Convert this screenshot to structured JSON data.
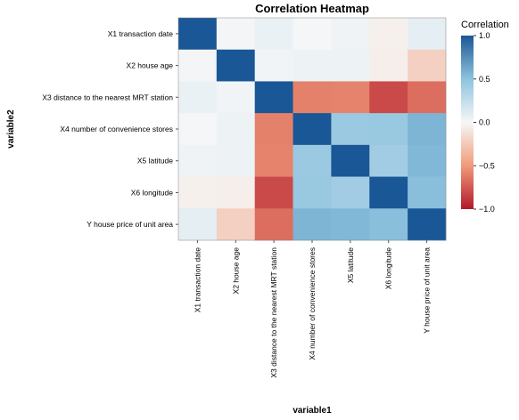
{
  "chart_data": {
    "type": "heatmap",
    "title": "Correlation Heatmap",
    "xlabel": "variable1",
    "ylabel": "variable2",
    "x_categories": [
      "X1 transaction date",
      "X2 house age",
      "X3 distance to the nearest MRT station",
      "X4 number of convenience stores",
      "X5 latitude",
      "X6 longitude",
      "Y house price of unit area"
    ],
    "y_categories": [
      "X1 transaction date",
      "X2 house age",
      "X3 distance to the nearest MRT station",
      "X4 number of convenience stores",
      "X5 latitude",
      "X6 longitude",
      "Y house price of unit area"
    ],
    "values": [
      [
        1.0,
        0.02,
        0.06,
        0.01,
        0.04,
        -0.04,
        0.09
      ],
      [
        0.02,
        1.0,
        0.03,
        0.05,
        0.05,
        -0.05,
        -0.21
      ],
      [
        0.06,
        0.03,
        1.0,
        -0.6,
        -0.59,
        -0.81,
        -0.67
      ],
      [
        0.01,
        0.05,
        -0.6,
        1.0,
        0.44,
        0.45,
        0.57
      ],
      [
        0.04,
        0.05,
        -0.59,
        0.44,
        1.0,
        0.41,
        0.55
      ],
      [
        -0.04,
        -0.05,
        -0.81,
        0.45,
        0.41,
        1.0,
        0.52
      ],
      [
        0.09,
        -0.21,
        -0.67,
        0.57,
        0.55,
        0.52,
        1.0
      ]
    ],
    "zlim": [
      -1,
      1
    ],
    "legend": {
      "title": "Correlation",
      "ticks": [
        "1.0",
        "0.5",
        "0.0",
        "-0.5",
        "-1.0"
      ],
      "placement": "right"
    },
    "colorscale": {
      "negative": "#b2182b",
      "neutral": "#f7f7f7",
      "positive": "#1a5796"
    }
  }
}
